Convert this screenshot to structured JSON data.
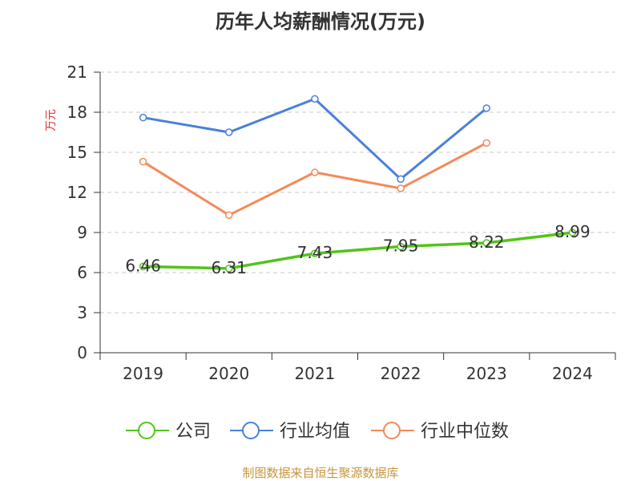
{
  "chart_data": {
    "type": "line",
    "title": "历年人均薪酬情况(万元)",
    "ylabel": "万元",
    "xlabel": "",
    "categories": [
      "2019",
      "2020",
      "2021",
      "2022",
      "2023",
      "2024"
    ],
    "ylim": [
      0,
      21
    ],
    "yticks": [
      0,
      3,
      6,
      9,
      12,
      15,
      18,
      21
    ],
    "grid": true,
    "legend_position": "bottom",
    "series": [
      {
        "name": "公司",
        "color": "#52c41a",
        "values": [
          6.46,
          6.31,
          7.43,
          7.95,
          8.22,
          8.99
        ],
        "data_labels": [
          "6.46",
          "6.31",
          "7.43",
          "7.95",
          "8.22",
          "8.99"
        ]
      },
      {
        "name": "行业均值",
        "color": "#4a7fdb",
        "values": [
          17.6,
          16.5,
          19.0,
          13.0,
          18.3,
          null
        ],
        "data_labels": []
      },
      {
        "name": "行业中位数",
        "color": "#f5895a",
        "values": [
          14.3,
          10.3,
          13.5,
          12.3,
          15.7,
          null
        ],
        "data_labels": []
      }
    ]
  },
  "source": "制图数据来自恒生聚源数据库",
  "colors": {
    "axis": "#333333",
    "grid": "#c8c8c8",
    "ylabel": "#e03030",
    "source": "#c8963c",
    "title": "#333333"
  }
}
